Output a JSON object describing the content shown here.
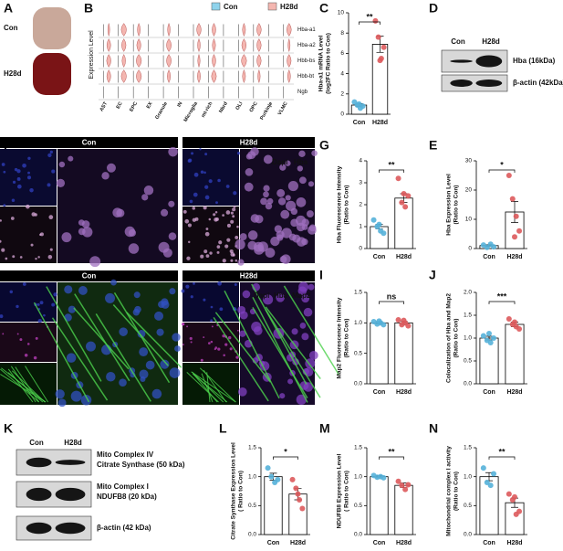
{
  "panels": [
    "A",
    "B",
    "C",
    "D",
    "F",
    "G",
    "E",
    "H",
    "I",
    "J",
    "K",
    "L",
    "M",
    "N"
  ],
  "photo": {
    "labels": [
      "Con",
      "H28d"
    ]
  },
  "violin": {
    "legend": [
      {
        "name": "Con",
        "color": "#8fd3ec"
      },
      {
        "name": "H28d",
        "color": "#f4b6b0"
      }
    ],
    "ylabel": "Expression Level",
    "genes": [
      "Hba-a1",
      "Hba-a2",
      "Hbb-bs",
      "Hbb-bt",
      "Ngb"
    ],
    "cell_types": [
      "AST",
      "EC",
      "EPC",
      "EX",
      "Granule",
      "IN",
      "Microglia",
      "mt-rich",
      "Nbrd",
      "OLI",
      "OPC",
      "Purkinje",
      "VLMC"
    ],
    "cell_type_colors": [
      "#d62728",
      "#d62728",
      "#d62728",
      "#111111",
      "#d62728",
      "#111111",
      "#d62728",
      "#d62728",
      "#111111",
      "#d62728",
      "#d62728",
      "#111111",
      "#d62728"
    ]
  },
  "blot_d": {
    "lanes": [
      "Con",
      "H28d"
    ],
    "bands": [
      "Hba (16kDa)",
      "β-actin (42kDa)"
    ]
  },
  "blot_k": {
    "lanes": [
      "Con",
      "H28d"
    ],
    "complex_iv": "Mito Complex IV",
    "cs": "Citrate Synthase (50 kDa)",
    "complex_i": "Mito Complex I",
    "ndufb8": "NDUFB8 (20 kDa)",
    "actin": "β-actin (42 kDa)"
  },
  "micro_f": {
    "groups": [
      "Con",
      "H28d"
    ],
    "channels": [
      "Dapi",
      "Hba"
    ]
  },
  "micro_h": {
    "groups": [
      "Con",
      "H28d"
    ],
    "channels": [
      "Dapi",
      "Hba",
      "Map2"
    ]
  },
  "chart_data": [
    {
      "type": "bar",
      "ylabel": [
        "Hba-a1 mRNA Level",
        "(log2FC Ratio to Con)"
      ],
      "categories": [
        "Con",
        "H28d"
      ],
      "values": [
        0.9,
        6.9
      ],
      "errors": [
        0.15,
        0.8
      ],
      "points": [
        [
          1.2,
          0.9,
          0.6,
          0.8,
          1.0
        ],
        [
          9.2,
          7.6,
          5.5,
          6.6,
          5.3
        ]
      ],
      "point_colors": [
        "#55b1d9",
        "#dd5a5c"
      ],
      "significance": "**",
      "ylim": [
        0,
        10
      ],
      "yticks": [
        0,
        2,
        4,
        6,
        8,
        10
      ]
    },
    {
      "type": "bar",
      "ylabel": [
        "Hba Fluorescence Intensity",
        "(Ratio to Con)"
      ],
      "categories": [
        "Con",
        "H28d"
      ],
      "values": [
        1.0,
        2.3
      ],
      "errors": [
        0.1,
        0.2
      ],
      "points": [
        [
          1.3,
          1.0,
          0.8,
          0.7,
          1.1
        ],
        [
          3.2,
          2.1,
          1.9,
          2.4,
          2.5
        ]
      ],
      "point_colors": [
        "#55b1d9",
        "#dd5a5c"
      ],
      "significance": "**",
      "ylim": [
        0,
        4
      ],
      "yticks": [
        0,
        1,
        2,
        3,
        4
      ]
    },
    {
      "type": "bar",
      "ylabel": [
        "Hba Expression Level",
        "(Ratio to Con)"
      ],
      "categories": [
        "Con",
        "H28d"
      ],
      "values": [
        1.0,
        12.5
      ],
      "errors": [
        0.3,
        3.6
      ],
      "points": [
        [
          1.2,
          0.4,
          1.5,
          0.6
        ],
        [
          25,
          17,
          11,
          6,
          4
        ]
      ],
      "point_colors": [
        "#55b1d9",
        "#dd5a5c"
      ],
      "significance": "*",
      "ylim": [
        0,
        30
      ],
      "yticks": [
        0,
        10,
        20,
        30
      ]
    },
    {
      "type": "bar",
      "ylabel": [
        "Map2 Fluorescence Intensity",
        "(Ratio to Con)"
      ],
      "categories": [
        "Con",
        "H28d"
      ],
      "values": [
        1.0,
        1.0
      ],
      "errors": [
        0.02,
        0.03
      ],
      "points": [
        [
          1.02,
          0.98,
          1.0,
          0.97,
          1.03
        ],
        [
          1.05,
          0.97,
          1.0,
          0.95,
          1.04
        ]
      ],
      "point_colors": [
        "#55b1d9",
        "#dd5a5c"
      ],
      "significance": "ns",
      "ylim": [
        0,
        1.5
      ],
      "yticks": [
        {
          "value": 0,
          "label": "0.0"
        },
        0.5,
        {
          "value": 1,
          "label": "1.0"
        },
        1.5
      ]
    },
    {
      "type": "bar",
      "ylabel": [
        "Colocalization of Hba and Map2",
        "(Ratio to Con)"
      ],
      "categories": [
        "Con",
        "H28d"
      ],
      "values": [
        1.0,
        1.3
      ],
      "errors": [
        0.04,
        0.05
      ],
      "points": [
        [
          1.05,
          0.95,
          0.9,
          1.0,
          1.1
        ],
        [
          1.42,
          1.3,
          1.25,
          1.2,
          1.35
        ]
      ],
      "point_colors": [
        "#55b1d9",
        "#dd5a5c"
      ],
      "significance": "***",
      "ylim": [
        0,
        2
      ],
      "yticks": [
        {
          "value": 0,
          "label": "0.0"
        },
        0.5,
        {
          "value": 1,
          "label": "1.0"
        },
        1.5,
        {
          "value": 2,
          "label": "2.0"
        }
      ]
    },
    {
      "type": "bar",
      "ylabel": [
        "Citrate Synthase Expression Level",
        "( Ratio to Con)"
      ],
      "categories": [
        "Con",
        "H28d"
      ],
      "values": [
        1.0,
        0.7
      ],
      "errors": [
        0.06,
        0.1
      ],
      "points": [
        [
          1.15,
          1.0,
          0.9,
          0.95
        ],
        [
          0.95,
          0.8,
          0.6,
          0.45,
          0.7
        ]
      ],
      "point_colors": [
        "#55b1d9",
        "#dd5a5c"
      ],
      "significance": "*",
      "ylim": [
        0,
        1.5
      ],
      "yticks": [
        {
          "value": 0,
          "label": "0.0"
        },
        0.5,
        {
          "value": 1,
          "label": "1.0"
        },
        1.5
      ]
    },
    {
      "type": "bar",
      "ylabel": [
        "NDUFB8 Expression Level",
        "( Ratio to Con)"
      ],
      "categories": [
        "Con",
        "H28d"
      ],
      "values": [
        1.0,
        0.85
      ],
      "errors": [
        0.02,
        0.04
      ],
      "points": [
        [
          1.02,
          0.99,
          1.0,
          0.98
        ],
        [
          0.92,
          0.85,
          0.78,
          0.86
        ]
      ],
      "point_colors": [
        "#55b1d9",
        "#dd5a5c"
      ],
      "significance": "**",
      "ylim": [
        0,
        1.5
      ],
      "yticks": [
        {
          "value": 0,
          "label": "0.0"
        },
        0.5,
        {
          "value": 1,
          "label": "1.0"
        },
        1.5
      ]
    },
    {
      "type": "bar",
      "ylabel": [
        "Mitochondrial complex I activity",
        "(Ratio to Con)"
      ],
      "categories": [
        "Con",
        "H28d"
      ],
      "values": [
        1.0,
        0.55
      ],
      "errors": [
        0.07,
        0.08
      ],
      "points": [
        [
          1.15,
          0.9,
          0.85,
          1.05
        ],
        [
          0.7,
          0.6,
          0.35,
          0.4,
          0.65
        ]
      ],
      "point_colors": [
        "#55b1d9",
        "#dd5a5c"
      ],
      "significance": "**",
      "ylim": [
        0,
        1.5
      ],
      "yticks": [
        {
          "value": 0,
          "label": "0.0"
        },
        0.5,
        {
          "value": 1,
          "label": "1.0"
        },
        1.5
      ]
    }
  ]
}
